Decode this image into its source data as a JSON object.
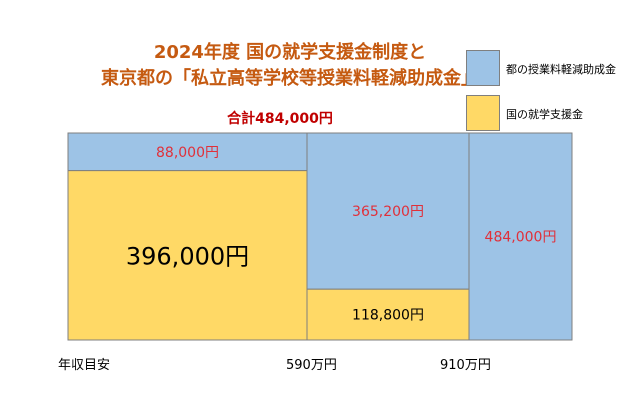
{
  "title": {
    "line1": "2024年度 国の就学支援金制度と",
    "line2": "東京都の「私立高等学校等授業料軽減助成金」"
  },
  "total_label": "合計484,000円",
  "legend": [
    {
      "label": "都の授業料軽減助成金",
      "color": "#9dc3e6"
    },
    {
      "label": "国の就学支援金",
      "color": "#ffd966"
    }
  ],
  "axis": {
    "x_title": "年収目安",
    "x_ticks": [
      "590万円",
      "910万円"
    ]
  },
  "colors": {
    "tokyo": "#9dc3e6",
    "national": "#ffd966",
    "value_red": "#e0303a"
  },
  "chart_data": {
    "type": "bar",
    "title": "2024年度 国の就学支援金制度と 東京都の「私立高等学校等授業料軽減助成金」",
    "annotation": "合計484,000円",
    "xlabel": "年収目安",
    "categories": [
      "〜590万円",
      "590万円〜910万円",
      "910万円〜"
    ],
    "series": [
      {
        "name": "国の就学支援金",
        "values": [
          396000,
          118800,
          0
        ],
        "labels": [
          "396,000円",
          "118,800円",
          ""
        ]
      },
      {
        "name": "都の授業料軽減助成金",
        "values": [
          88000,
          365200,
          484000
        ],
        "labels": [
          "88,000円",
          "365,200円",
          "484,000円"
        ]
      }
    ],
    "stacked": true,
    "ylim": [
      0,
      484000
    ]
  }
}
